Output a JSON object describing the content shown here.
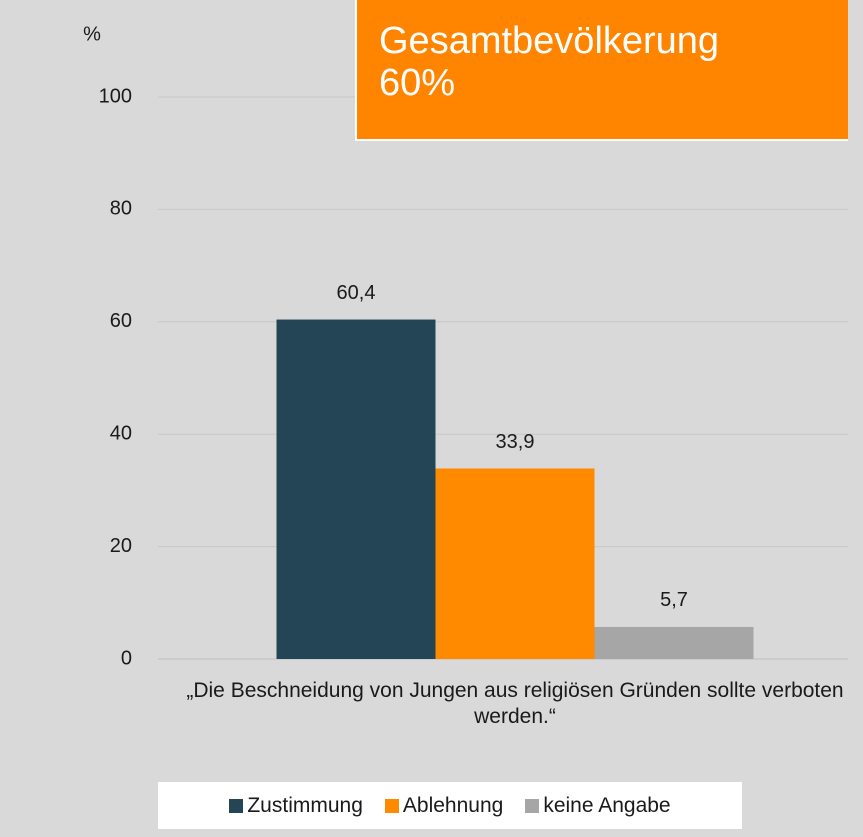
{
  "chart_data": {
    "type": "bar",
    "y_label": "%",
    "annotation": [
      "Gesamtbevölkerung",
      "60%"
    ],
    "categories": [
      "„Die Beschneidung von Jungen aus religiösen Gründen sollte verboten werden.“"
    ],
    "series": [
      {
        "name": "Zustimmung",
        "color": "#234556",
        "values": [
          60.4
        ],
        "value_labels": [
          "60,4"
        ]
      },
      {
        "name": "Ablehnung",
        "color": "#ff8a00",
        "values": [
          33.9
        ],
        "value_labels": [
          "33,9"
        ]
      },
      {
        "name": "keine Angabe",
        "color": "#a6a6a6",
        "values": [
          5.7
        ],
        "value_labels": [
          "5,7"
        ]
      }
    ],
    "ylim": [
      0,
      100
    ],
    "yticks": [
      0,
      20,
      40,
      60,
      80,
      100
    ],
    "grid": true,
    "legend": "bottom"
  }
}
